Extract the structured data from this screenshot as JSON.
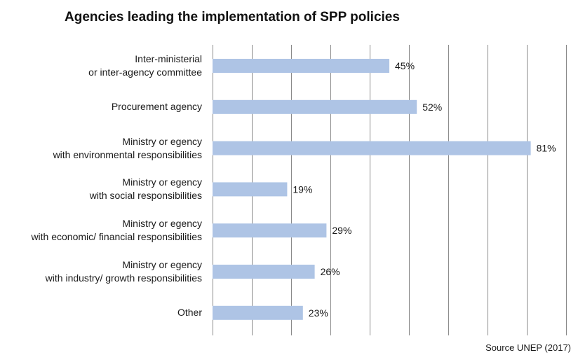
{
  "chart_data": {
    "type": "bar",
    "orientation": "horizontal",
    "title": "Agencies leading the implementation of SPP policies",
    "categories": [
      [
        "Inter-ministerial",
        "or inter-agency committee"
      ],
      [
        "Procurement agency"
      ],
      [
        "Ministry or egency",
        "with environmental responsibilities"
      ],
      [
        "Ministry or egency",
        "with social responsibilities"
      ],
      [
        "Ministry or egency",
        "with economic/ financial responsibilities"
      ],
      [
        "Ministry or egency",
        "with industry/ growth responsibilities"
      ],
      [
        "Other"
      ]
    ],
    "values": [
      45,
      52,
      81,
      19,
      29,
      26,
      23
    ],
    "value_labels": [
      "45%",
      "52%",
      "81%",
      "19%",
      "29%",
      "26%",
      "23%"
    ],
    "unit": "%",
    "xlim": [
      0,
      90
    ],
    "grid": true,
    "bar_color": "#aec4e5",
    "grid_color": "#8a8a8a"
  },
  "source": "Source UNEP (2017)"
}
